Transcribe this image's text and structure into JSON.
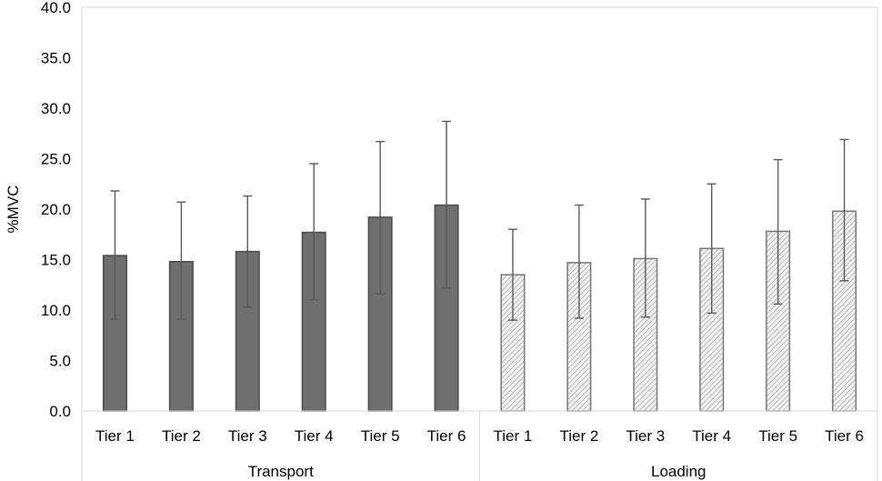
{
  "chart_data": {
    "type": "bar",
    "ylabel": "%MVC",
    "ylim": [
      0,
      40
    ],
    "yticks": [
      "0.0",
      "5.0",
      "10.0",
      "15.0",
      "20.0",
      "25.0",
      "30.0",
      "35.0",
      "40.0"
    ],
    "grid": false,
    "groups": [
      {
        "name": "Transport",
        "fill_style": "solid",
        "color": "#6f6f6f",
        "categories": [
          "Tier 1",
          "Tier 2",
          "Tier 3",
          "Tier 4",
          "Tier 5",
          "Tier 6"
        ],
        "values": [
          15.4,
          14.8,
          15.8,
          17.7,
          19.2,
          20.4
        ],
        "error_low": [
          9.1,
          9.1,
          10.3,
          11.0,
          11.6,
          12.2
        ],
        "error_high": [
          21.8,
          20.7,
          21.3,
          24.5,
          26.7,
          28.7
        ]
      },
      {
        "name": "Loading",
        "fill_style": "hatched",
        "color": "#a0a0a0",
        "categories": [
          "Tier 1",
          "Tier 2",
          "Tier 3",
          "Tier 4",
          "Tier 5",
          "Tier 6"
        ],
        "values": [
          13.5,
          14.7,
          15.1,
          16.1,
          17.8,
          19.8
        ],
        "error_low": [
          9.0,
          9.2,
          9.3,
          9.7,
          10.6,
          12.9
        ],
        "error_high": [
          18.0,
          20.4,
          21.0,
          22.5,
          24.9,
          26.9
        ]
      }
    ]
  }
}
